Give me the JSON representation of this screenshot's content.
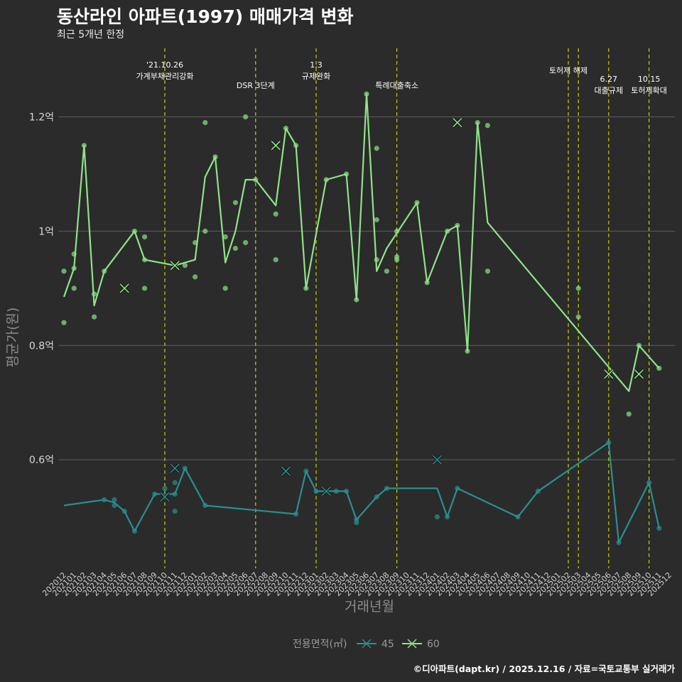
{
  "title": "동산라인 아파트(1997) 매매가격 변화",
  "subtitle": "최근 5개년 한정",
  "footer": "©디아파트(dapt.kr) / 2025.12.16 / 자료=국토교통부 실거래가",
  "colors": {
    "s45": "#2a8f8f",
    "s60": "#8fe388",
    "vline": "#c8cc00",
    "grid": "#5e5e5e"
  },
  "chart_data": {
    "type": "line",
    "title": "동산라인 아파트(1997) 매매가격 변화",
    "xlabel": "거래년월",
    "ylabel": "평균가(원)",
    "ylim": [
      0.41,
      1.32
    ],
    "yticks": [
      {
        "v": 0.6,
        "label": "0.6억"
      },
      {
        "v": 0.8,
        "label": "0.8억"
      },
      {
        "v": 1.0,
        "label": "1억"
      },
      {
        "v": 1.2,
        "label": "1.2억"
      }
    ],
    "categories": [
      "202012",
      "202101",
      "202102",
      "202103",
      "202104",
      "202105",
      "202106",
      "202107",
      "202108",
      "202109",
      "202110",
      "202111",
      "202112",
      "202201",
      "202202",
      "202203",
      "202204",
      "202205",
      "202206",
      "202207",
      "202208",
      "202209",
      "202210",
      "202211",
      "202212",
      "202301",
      "202302",
      "202303",
      "202304",
      "202305",
      "202306",
      "202307",
      "202308",
      "202309",
      "202310",
      "202311",
      "202312",
      "202401",
      "202402",
      "202403",
      "202404",
      "202405",
      "202406",
      "202407",
      "202408",
      "202409",
      "202410",
      "202411",
      "202412",
      "202501",
      "202502",
      "202503",
      "202504",
      "202505",
      "202506",
      "202507",
      "202508",
      "202509",
      "202510",
      "202511",
      "202512"
    ],
    "legend": {
      "title": "전용면적(㎡)",
      "entries": [
        "45",
        "60"
      ],
      "position": "bottom"
    },
    "series": [
      {
        "name": "45",
        "color": "#2a8f8f",
        "line": [
          [
            0,
            0.52
          ],
          [
            4,
            0.53
          ],
          [
            5,
            0.525
          ],
          [
            6,
            0.51
          ],
          [
            7,
            0.475
          ],
          [
            9,
            0.54
          ],
          [
            10,
            0.54
          ],
          [
            11,
            0.54
          ],
          [
            12,
            0.585
          ],
          [
            14,
            0.52
          ],
          [
            23,
            0.505
          ],
          [
            24,
            0.58
          ],
          [
            25,
            0.545
          ],
          [
            26,
            0.545
          ],
          [
            27,
            0.545
          ],
          [
            28,
            0.545
          ],
          [
            29,
            0.495
          ],
          [
            31,
            0.535
          ],
          [
            32,
            0.55
          ],
          [
            37,
            0.55
          ],
          [
            38,
            0.5
          ],
          [
            39,
            0.55
          ],
          [
            45,
            0.5
          ],
          [
            47,
            0.545
          ],
          [
            54,
            0.63
          ],
          [
            55,
            0.455
          ],
          [
            58,
            0.56
          ],
          [
            59,
            0.48
          ]
        ],
        "points": [
          [
            4,
            0.53
          ],
          [
            5,
            0.53
          ],
          [
            5,
            0.52
          ],
          [
            6,
            0.51
          ],
          [
            7,
            0.475
          ],
          [
            9,
            0.54
          ],
          [
            10,
            0.55
          ],
          [
            11,
            0.54
          ],
          [
            11,
            0.56
          ],
          [
            11,
            0.51
          ],
          [
            12,
            0.585
          ],
          [
            14,
            0.52
          ],
          [
            23,
            0.505
          ],
          [
            24,
            0.58
          ],
          [
            25,
            0.545
          ],
          [
            26,
            0.545
          ],
          [
            27,
            0.545
          ],
          [
            28,
            0.545
          ],
          [
            29,
            0.49
          ],
          [
            29,
            0.495
          ],
          [
            31,
            0.535
          ],
          [
            32,
            0.55
          ],
          [
            37,
            0.5
          ],
          [
            38,
            0.5
          ],
          [
            39,
            0.55
          ],
          [
            45,
            0.5
          ],
          [
            47,
            0.545
          ],
          [
            54,
            0.63
          ],
          [
            55,
            0.455
          ],
          [
            58,
            0.56
          ],
          [
            59,
            0.48
          ]
        ],
        "crosses": [
          [
            10,
            0.535
          ],
          [
            11,
            0.585
          ],
          [
            22,
            0.58
          ],
          [
            26,
            0.545
          ],
          [
            37,
            0.6
          ]
        ]
      },
      {
        "name": "60",
        "color": "#8fe388",
        "line": [
          [
            0,
            0.885
          ],
          [
            1,
            0.935
          ],
          [
            2,
            1.15
          ],
          [
            3,
            0.87
          ],
          [
            4,
            0.93
          ],
          [
            7,
            1.0
          ],
          [
            8,
            0.95
          ],
          [
            11,
            0.94
          ],
          [
            13,
            0.95
          ],
          [
            14,
            1.095
          ],
          [
            15,
            1.13
          ],
          [
            16,
            0.945
          ],
          [
            17,
            1.0
          ],
          [
            18,
            1.09
          ],
          [
            19,
            1.09
          ],
          [
            21,
            1.045
          ],
          [
            22,
            1.18
          ],
          [
            23,
            1.15
          ],
          [
            24,
            0.9
          ],
          [
            26,
            1.09
          ],
          [
            28,
            1.1
          ],
          [
            29,
            0.88
          ],
          [
            30,
            1.24
          ],
          [
            31,
            0.93
          ],
          [
            32,
            0.97
          ],
          [
            35,
            1.05
          ],
          [
            36,
            0.91
          ],
          [
            38,
            1.0
          ],
          [
            39,
            1.01
          ],
          [
            40,
            0.79
          ],
          [
            41,
            1.19
          ],
          [
            42,
            1.015
          ],
          [
            56,
            0.72
          ],
          [
            57,
            0.8
          ],
          [
            59,
            0.76
          ]
        ],
        "points": [
          [
            0,
            0.93
          ],
          [
            0,
            0.84
          ],
          [
            1,
            0.96
          ],
          [
            1,
            0.935
          ],
          [
            1,
            0.9
          ],
          [
            2,
            1.15
          ],
          [
            3,
            0.89
          ],
          [
            3,
            0.85
          ],
          [
            4,
            0.93
          ],
          [
            7,
            1.0
          ],
          [
            8,
            0.99
          ],
          [
            8,
            0.95
          ],
          [
            8,
            0.9
          ],
          [
            12,
            0.94
          ],
          [
            13,
            0.98
          ],
          [
            13,
            0.92
          ],
          [
            14,
            1.19
          ],
          [
            14,
            1.0
          ],
          [
            15,
            1.13
          ],
          [
            16,
            0.99
          ],
          [
            16,
            0.9
          ],
          [
            17,
            1.05
          ],
          [
            17,
            0.97
          ],
          [
            18,
            1.2
          ],
          [
            18,
            0.98
          ],
          [
            19,
            1.09
          ],
          [
            21,
            1.03
          ],
          [
            21,
            0.95
          ],
          [
            22,
            1.18
          ],
          [
            23,
            1.15
          ],
          [
            24,
            0.9
          ],
          [
            26,
            1.09
          ],
          [
            28,
            1.1
          ],
          [
            29,
            0.88
          ],
          [
            30,
            1.24
          ],
          [
            31,
            1.145
          ],
          [
            31,
            1.02
          ],
          [
            31,
            0.95
          ],
          [
            32,
            0.93
          ],
          [
            33,
            1.0
          ],
          [
            33,
            0.955
          ],
          [
            33,
            0.95
          ],
          [
            35,
            1.05
          ],
          [
            36,
            0.91
          ],
          [
            38,
            1.0
          ],
          [
            39,
            1.01
          ],
          [
            40,
            0.79
          ],
          [
            41,
            1.19
          ],
          [
            42,
            1.185
          ],
          [
            42,
            0.93
          ],
          [
            51,
            0.9
          ],
          [
            51,
            0.85
          ],
          [
            56,
            0.68
          ],
          [
            57,
            0.8
          ],
          [
            59,
            0.76
          ]
        ],
        "crosses": [
          [
            6,
            0.9
          ],
          [
            11,
            0.94
          ],
          [
            21,
            1.15
          ],
          [
            39,
            1.19
          ],
          [
            54,
            0.75
          ],
          [
            57,
            0.75
          ]
        ]
      }
    ],
    "annotations": [
      {
        "x": 10,
        "lines": [
          "'21.10.26",
          "가계부채관리강화"
        ]
      },
      {
        "x": 19,
        "lines": [
          "DSR 3단계"
        ]
      },
      {
        "x": 25,
        "lines": [
          "1.3",
          "규제완화"
        ]
      },
      {
        "x": 33,
        "lines": [
          "특례대출축소"
        ]
      },
      {
        "x": 50,
        "lines": [
          "토허제 해제"
        ]
      },
      {
        "x": 51,
        "lines": []
      },
      {
        "x": 54,
        "lines": [
          "6.27",
          "대출규제"
        ]
      },
      {
        "x": 58,
        "lines": [
          "10.15",
          "토허제확대"
        ]
      }
    ]
  }
}
